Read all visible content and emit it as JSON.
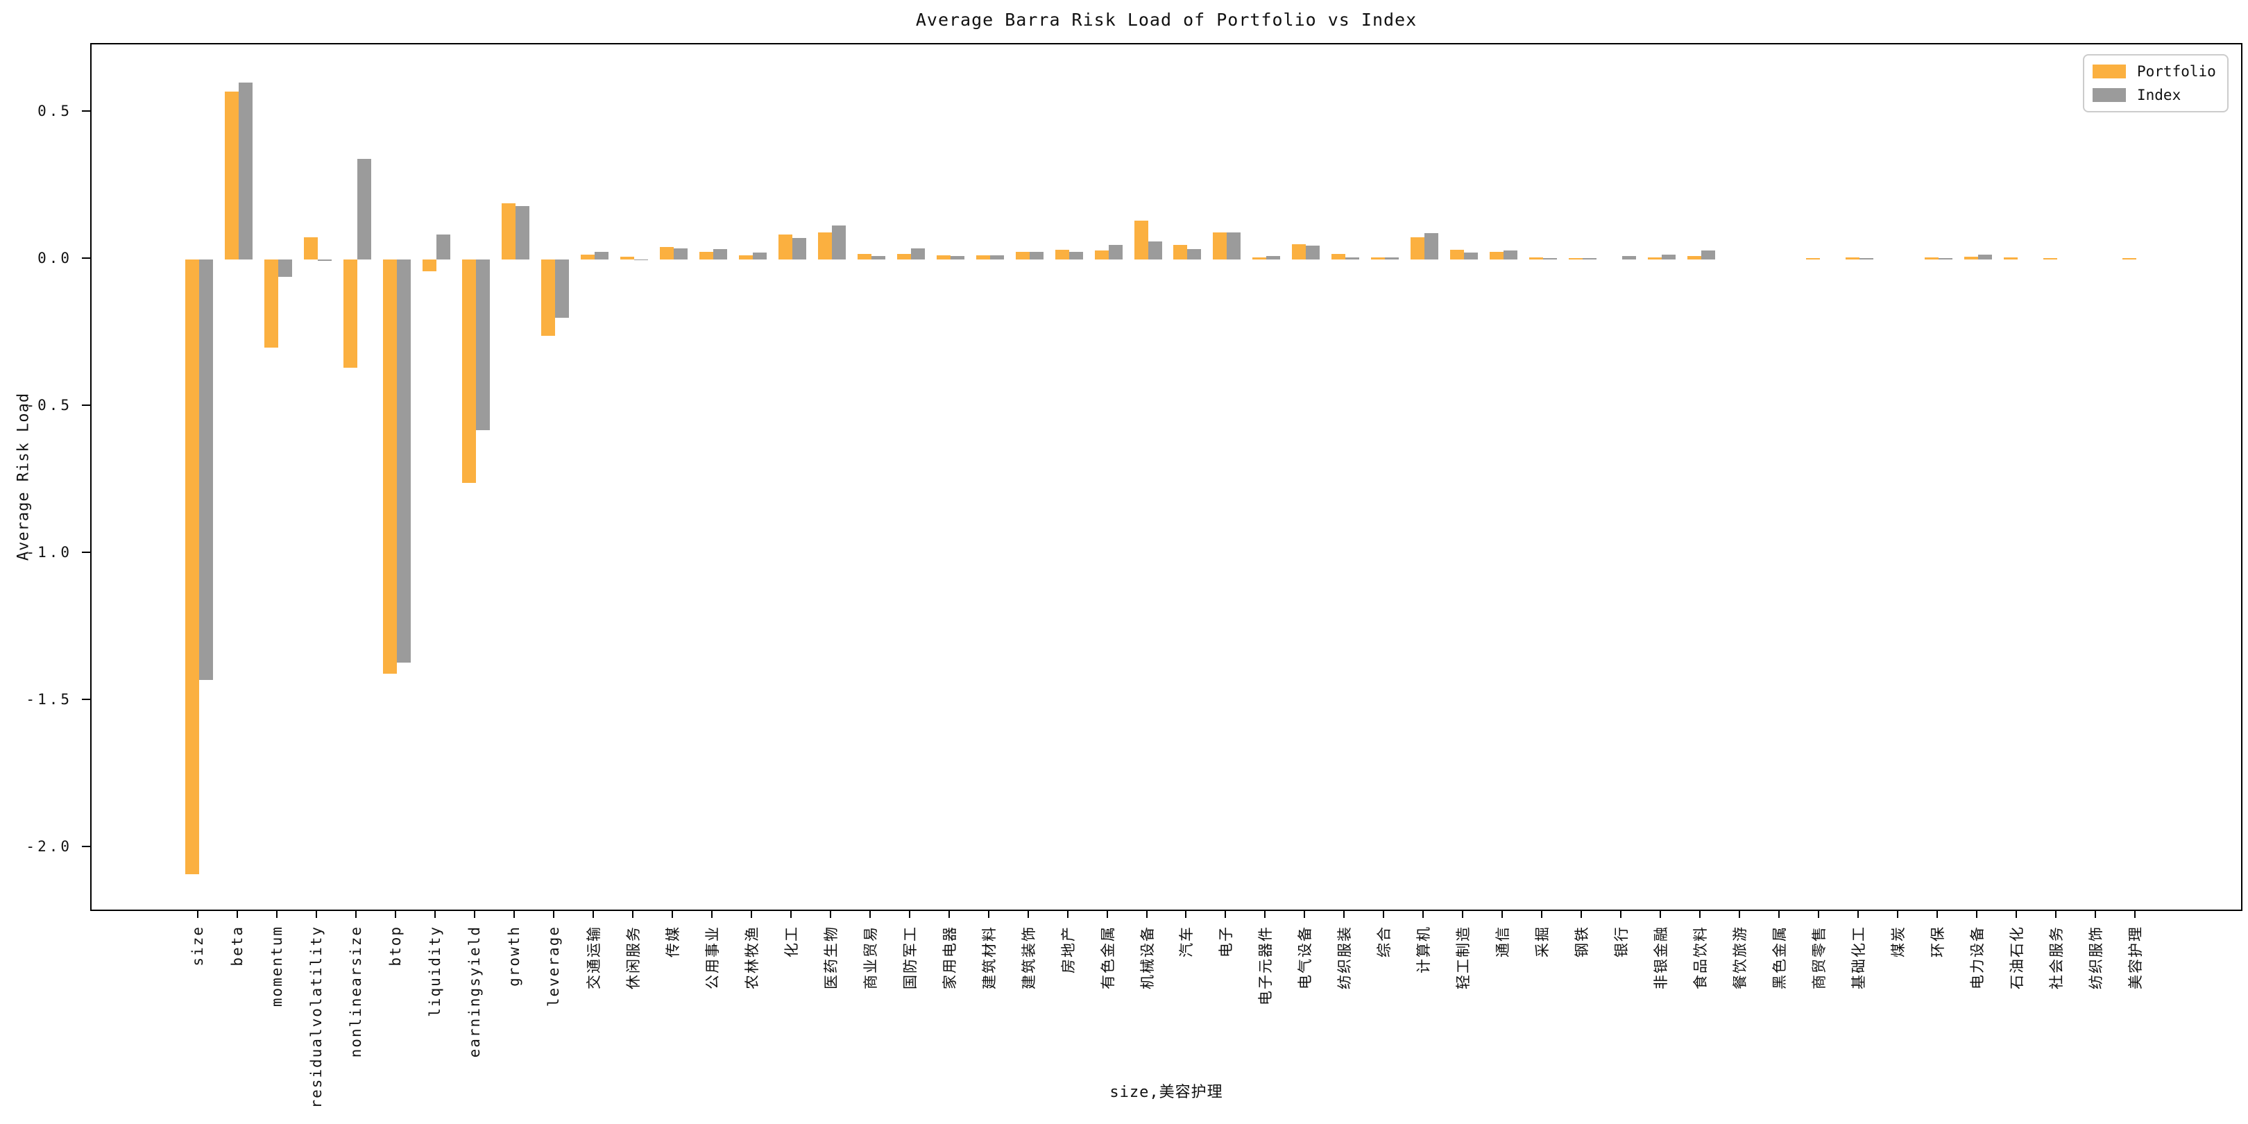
{
  "chart_data": {
    "type": "bar",
    "title": "Average Barra Risk Load of Portfolio vs Index",
    "xlabel": "size,美容护理",
    "ylabel": "Average Risk Load",
    "legend_position": "upper right",
    "grid": false,
    "background": "#ffffff",
    "ylim": [
      -2.22,
      0.73
    ],
    "yticks": [
      0.5,
      0.0,
      -0.5,
      -1.0,
      -1.5,
      -2.0
    ],
    "categories": [
      "size",
      "beta",
      "momentum",
      "residualvolatility",
      "nonlinearsize",
      "btop",
      "liquidity",
      "earningsyield",
      "growth",
      "leverage",
      "交通运输",
      "休闲服务",
      "传媒",
      "公用事业",
      "农林牧渔",
      "化工",
      "医药生物",
      "商业贸易",
      "国防军工",
      "家用电器",
      "建筑材料",
      "建筑装饰",
      "房地产",
      "有色金属",
      "机械设备",
      "汽车",
      "电子",
      "电子元器件",
      "电气设备",
      "纺织服装",
      "综合",
      "计算机",
      "轻工制造",
      "通信",
      "采掘",
      "钢铁",
      "银行",
      "非银金融",
      "食品饮料",
      "餐饮旅游",
      "黑色金属",
      "商贸零售",
      "基础化工",
      "煤炭",
      "环保",
      "电力设备",
      "石油石化",
      "社会服务",
      "纺织服饰",
      "美容护理"
    ],
    "series": [
      {
        "name": "Portfolio",
        "color": "#FBB040",
        "values": [
          -2.09,
          0.57,
          -0.3,
          0.075,
          -0.37,
          -1.41,
          -0.04,
          -0.76,
          0.19,
          -0.26,
          0.015,
          0.008,
          0.042,
          0.025,
          0.013,
          0.083,
          0.09,
          0.018,
          0.019,
          0.013,
          0.013,
          0.026,
          0.032,
          0.029,
          0.13,
          0.049,
          0.091,
          0.005,
          0.052,
          0.019,
          0.007,
          0.075,
          0.032,
          0.026,
          0.005,
          0.003,
          0.002,
          0.005,
          0.01,
          0.001,
          0.001,
          0.004,
          0.005,
          0.002,
          0.006,
          0.008,
          0.006,
          0.004,
          0.001,
          0.003
        ]
      },
      {
        "name": "Index",
        "color": "#9B9B9B",
        "values": [
          -1.43,
          0.6,
          -0.06,
          -0.005,
          0.34,
          -1.37,
          0.085,
          -0.58,
          0.18,
          -0.2,
          0.024,
          -0.003,
          0.037,
          0.035,
          0.023,
          0.072,
          0.115,
          0.011,
          0.036,
          0.01,
          0.014,
          0.026,
          0.024,
          0.049,
          0.061,
          0.035,
          0.091,
          0.01,
          0.047,
          0.007,
          0.005,
          0.089,
          0.022,
          0.029,
          0.004,
          0.003,
          0.01,
          0.015,
          0.03,
          0.001,
          0.001,
          0.001,
          0.004,
          0.002,
          0.003,
          0.015,
          0.002,
          0.001,
          0.001,
          0.001
        ]
      }
    ]
  }
}
